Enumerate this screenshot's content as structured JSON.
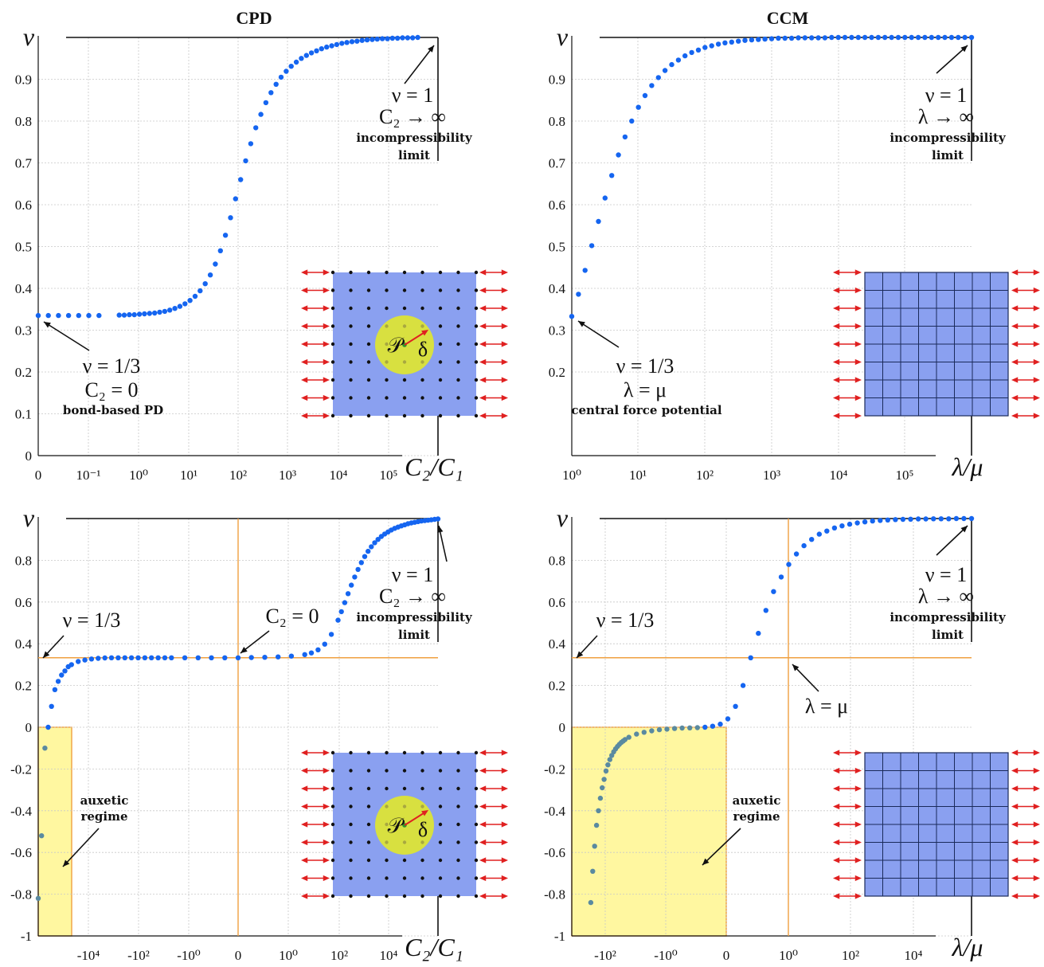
{
  "colors": {
    "points": "#1565f0",
    "points_auxetic": "#5a8aa0",
    "grid": "#c8c8c8",
    "orange": "#f0a040",
    "auxetic_fill": "#fff7a0",
    "inset_blue": "#8aa0f0",
    "inset_circle": "#d8e040",
    "arrows": "#e02020"
  },
  "chart_data": [
    {
      "id": "cpd_top",
      "type": "scatter",
      "title": "CPD",
      "ylabel": "ν",
      "xlabel": "C₂/C₁",
      "ylim": [
        0,
        1
      ],
      "yticks": [
        "0",
        "0.1",
        "0.2",
        "0.3",
        "0.4",
        "0.5",
        "0.6",
        "0.7",
        "0.8",
        "0.9"
      ],
      "xticks": [
        "0",
        "10⁻¹",
        "10⁰",
        "10¹",
        "10²",
        "10³",
        "10⁴",
        "10⁵"
      ],
      "grid": true,
      "series": [
        {
          "x_note": "log10(C2/C1); first point at C2 = 0",
          "x": [
            -1.6,
            -1.4,
            -1.2,
            -1.0,
            -0.8,
            -0.6,
            -0.4,
            0.0,
            0.1,
            0.2,
            0.3,
            0.4,
            0.5,
            0.6,
            0.7,
            0.8,
            0.9,
            1.0,
            1.1,
            1.2,
            1.3,
            1.4,
            1.5,
            1.6,
            1.7,
            1.8,
            1.9,
            2.0,
            2.1,
            2.2,
            2.3,
            2.4,
            2.5,
            2.6,
            2.7,
            2.8,
            2.9,
            3.0,
            3.1,
            3.2,
            3.3,
            3.4,
            3.5,
            3.6,
            3.7,
            3.8,
            3.9,
            4.0,
            4.1,
            4.2,
            4.3,
            4.4,
            4.5,
            4.6,
            4.7,
            4.8,
            4.9,
            5.0,
            5.1,
            5.2,
            5.3,
            5.4,
            5.5,
            5.6,
            5.7,
            5.8,
            5.9
          ],
          "y": [
            0.335,
            0.335,
            0.335,
            0.335,
            0.335,
            0.335,
            0.335,
            0.336,
            0.336,
            0.337,
            0.337,
            0.338,
            0.339,
            0.34,
            0.341,
            0.343,
            0.345,
            0.348,
            0.352,
            0.357,
            0.363,
            0.371,
            0.381,
            0.394,
            0.411,
            0.432,
            0.458,
            0.49,
            0.527,
            0.569,
            0.614,
            0.66,
            0.705,
            0.746,
            0.784,
            0.816,
            0.844,
            0.868,
            0.888,
            0.905,
            0.919,
            0.931,
            0.941,
            0.95,
            0.957,
            0.963,
            0.968,
            0.973,
            0.977,
            0.98,
            0.983,
            0.986,
            0.988,
            0.99,
            0.991,
            0.993,
            0.994,
            0.995,
            0.996,
            0.997,
            0.997,
            0.998,
            0.998,
            0.999,
            0.999,
            0.999,
            1.0
          ]
        }
      ],
      "annotations": [
        {
          "lines": [
            "ν = 1",
            "C₂ → ∞"
          ],
          "small": [
            "incompressibility",
            "limit"
          ]
        },
        {
          "lines": [
            "ν = 1/3",
            "C₂ = 0"
          ],
          "small": [
            "bond-based PD"
          ]
        }
      ],
      "inset": {
        "kind": "lattice",
        "labels": [
          "𝒫",
          "δ"
        ]
      }
    },
    {
      "id": "ccm_top",
      "type": "scatter",
      "title": "CCM",
      "ylabel": "ν",
      "xlabel": "λ/μ",
      "ylim": [
        0,
        1
      ],
      "yticks": [
        "0.2",
        "0.3",
        "0.4",
        "0.5",
        "0.6",
        "0.7",
        "0.8",
        "0.9"
      ],
      "xticks": [
        "10⁰",
        "10¹",
        "10²",
        "10³",
        "10⁴",
        "10⁵"
      ],
      "grid": true,
      "series": [
        {
          "x_note": "log10(λ/μ)",
          "x": [
            0.0,
            0.1,
            0.2,
            0.3,
            0.4,
            0.5,
            0.6,
            0.7,
            0.8,
            0.9,
            1.0,
            1.1,
            1.2,
            1.3,
            1.4,
            1.5,
            1.6,
            1.7,
            1.8,
            1.9,
            2.0,
            2.1,
            2.2,
            2.3,
            2.4,
            2.5,
            2.6,
            2.7,
            2.8,
            2.9,
            3.0,
            3.1,
            3.2,
            3.3,
            3.4,
            3.5,
            3.6,
            3.7,
            3.8,
            3.9,
            4.0,
            4.1,
            4.2,
            4.3,
            4.4,
            4.5,
            4.6,
            4.7,
            4.8,
            4.9,
            5.0,
            5.1,
            5.2,
            5.3,
            5.4,
            5.5,
            5.6,
            5.7,
            5.8,
            5.9,
            6.0
          ],
          "y": [
            0.333,
            0.386,
            0.443,
            0.502,
            0.56,
            0.616,
            0.67,
            0.719,
            0.762,
            0.8,
            0.833,
            0.861,
            0.885,
            0.904,
            0.921,
            0.935,
            0.946,
            0.956,
            0.964,
            0.97,
            0.976,
            0.98,
            0.984,
            0.987,
            0.989,
            0.991,
            0.993,
            0.994,
            0.995,
            0.996,
            0.997,
            0.998,
            0.998,
            0.998,
            0.999,
            0.999,
            0.999,
            0.999,
            0.999,
            1.0,
            1.0,
            1.0,
            1.0,
            1.0,
            1.0,
            1.0,
            1.0,
            1.0,
            1.0,
            1.0,
            1.0,
            1.0,
            1.0,
            1.0,
            1.0,
            1.0,
            1.0,
            1.0,
            1.0,
            1.0,
            1.0
          ]
        }
      ],
      "annotations": [
        {
          "lines": [
            "ν = 1",
            "λ → ∞"
          ],
          "small": [
            "incompressibility",
            "limit"
          ]
        },
        {
          "lines": [
            "ν = 1/3",
            "λ = μ"
          ],
          "small": [
            "central force potential"
          ]
        }
      ],
      "inset": {
        "kind": "mesh"
      }
    },
    {
      "id": "cpd_bottom",
      "type": "scatter",
      "ylabel": "ν",
      "xlabel": "C₂/C₁",
      "ylim": [
        -1,
        1
      ],
      "yticks": [
        "-1",
        "-0.8",
        "-0.6",
        "-0.4",
        "-0.2",
        "0",
        "0.2",
        "0.4",
        "0.6",
        "0.8"
      ],
      "xticks": [
        "-10⁴",
        "-10²",
        "-10⁰",
        "0",
        "10⁰",
        "10²",
        "10⁴"
      ],
      "grid": true,
      "series": [
        {
          "x_note": "symlog(C2/C1); negative branch on the left, positive on the right",
          "x": [
            -6.0,
            -5.9,
            -5.8,
            -5.7,
            -5.6,
            -5.5,
            -5.4,
            -5.3,
            -5.2,
            -5.1,
            -5.0,
            -4.8,
            -4.6,
            -4.4,
            -4.2,
            -4.0,
            -3.8,
            -3.6,
            -3.4,
            -3.2,
            -3.0,
            -2.8,
            -2.6,
            -2.4,
            -2.2,
            -2.0,
            -1.6,
            -1.2,
            -0.8,
            -0.4,
            0.0,
            0.4,
            0.8,
            1.2,
            1.6,
            2.0,
            2.2,
            2.4,
            2.6,
            2.8,
            3.0,
            3.1,
            3.2,
            3.3,
            3.4,
            3.5,
            3.6,
            3.7,
            3.8,
            3.9,
            4.0,
            4.1,
            4.2,
            4.3,
            4.4,
            4.5,
            4.6,
            4.7,
            4.8,
            4.9,
            5.0,
            5.1,
            5.2,
            5.3,
            5.4,
            5.5,
            5.6,
            5.7,
            5.8,
            5.9,
            6.0
          ],
          "y": [
            -0.82,
            -0.52,
            -0.1,
            0.0,
            0.1,
            0.18,
            0.22,
            0.25,
            0.27,
            0.29,
            0.3,
            0.315,
            0.322,
            0.327,
            0.33,
            0.332,
            0.333,
            0.333,
            0.333,
            0.333,
            0.333,
            0.333,
            0.333,
            0.333,
            0.333,
            0.333,
            0.333,
            0.333,
            0.333,
            0.333,
            0.333,
            0.334,
            0.335,
            0.337,
            0.341,
            0.348,
            0.356,
            0.371,
            0.398,
            0.445,
            0.513,
            0.554,
            0.597,
            0.64,
            0.681,
            0.72,
            0.756,
            0.789,
            0.818,
            0.843,
            0.865,
            0.884,
            0.9,
            0.914,
            0.926,
            0.936,
            0.945,
            0.953,
            0.959,
            0.965,
            0.97,
            0.975,
            0.979,
            0.982,
            0.985,
            0.988,
            0.99,
            0.992,
            0.994,
            0.996,
            0.998
          ]
        }
      ],
      "annotations": [
        {
          "lines": [
            "ν = 1",
            "C₂ → ∞"
          ],
          "small": [
            "incompressibility",
            "limit"
          ]
        },
        {
          "lines": [
            "ν = 1/3"
          ]
        },
        {
          "lines": [
            "C₂ = 0"
          ]
        },
        {
          "small": [
            "auxetic",
            "regime"
          ]
        }
      ],
      "inset": {
        "kind": "lattice",
        "labels": [
          "𝒫",
          "δ"
        ]
      }
    },
    {
      "id": "ccm_bottom",
      "type": "scatter",
      "ylabel": "ν",
      "xlabel": "λ/μ",
      "ylim": [
        -1,
        1
      ],
      "yticks": [
        "-1",
        "-0.8",
        "-0.6",
        "-0.4",
        "-0.2",
        "0",
        "0.2",
        "0.4",
        "0.6",
        "0.8"
      ],
      "xticks": [
        "-10²",
        "-10⁰",
        "0",
        "10⁰",
        "10²",
        "10⁴"
      ],
      "grid": true,
      "series": [
        {
          "x_note": "symlog(λ/μ)",
          "x": [
            -3.0,
            -2.95,
            -2.9,
            -2.85,
            -2.8,
            -2.75,
            -2.7,
            -2.65,
            -2.6,
            -2.55,
            -2.5,
            -2.45,
            -2.4,
            -2.35,
            -2.3,
            -2.25,
            -2.2,
            -2.15,
            -2.1,
            -2.0,
            -1.8,
            -1.6,
            -1.4,
            -1.2,
            -1.0,
            -0.8,
            -0.6,
            -0.4,
            -0.2,
            0.0,
            0.2,
            0.4,
            0.6,
            0.8,
            1.0,
            1.2,
            1.4,
            1.6,
            1.8,
            2.0,
            2.2,
            2.4,
            2.6,
            2.8,
            3.0,
            3.2,
            3.4,
            3.6,
            3.8,
            4.0,
            4.2,
            4.4,
            4.6,
            4.8,
            5.0,
            5.2,
            5.4,
            5.6,
            5.8,
            6.0,
            6.2,
            6.4,
            6.6,
            6.8,
            7.0
          ],
          "y": [
            -0.84,
            -0.69,
            -0.57,
            -0.47,
            -0.4,
            -0.34,
            -0.29,
            -0.25,
            -0.21,
            -0.18,
            -0.155,
            -0.135,
            -0.118,
            -0.104,
            -0.092,
            -0.082,
            -0.073,
            -0.066,
            -0.059,
            -0.048,
            -0.033,
            -0.024,
            -0.017,
            -0.012,
            -0.009,
            -0.006,
            -0.004,
            -0.003,
            -0.002,
            0.0,
            0.005,
            0.015,
            0.04,
            0.1,
            0.2,
            0.333,
            0.45,
            0.56,
            0.65,
            0.72,
            0.78,
            0.83,
            0.87,
            0.9,
            0.925,
            0.94,
            0.955,
            0.965,
            0.973,
            0.979,
            0.984,
            0.988,
            0.991,
            0.993,
            0.995,
            0.996,
            0.997,
            0.998,
            0.998,
            0.999,
            0.999,
            0.999,
            1.0,
            1.0,
            1.0
          ]
        }
      ],
      "annotations": [
        {
          "lines": [
            "ν = 1",
            "λ → ∞"
          ],
          "small": [
            "incompressibility",
            "limit"
          ]
        },
        {
          "lines": [
            "ν = 1/3"
          ]
        },
        {
          "lines": [
            "λ = μ"
          ]
        },
        {
          "small": [
            "auxetic",
            "regime"
          ]
        }
      ],
      "inset": {
        "kind": "mesh"
      }
    }
  ]
}
